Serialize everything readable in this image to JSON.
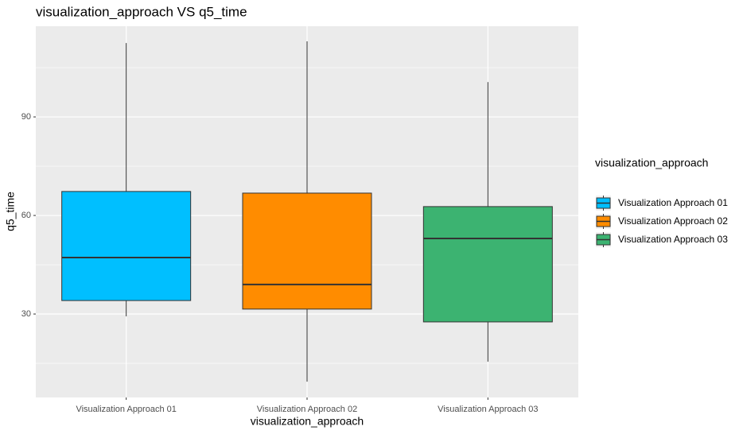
{
  "chart_data": {
    "type": "boxplot",
    "title": "visualization_approach VS q5_time",
    "x_label": "visualization_approach",
    "y_label": "q5_time",
    "legend_title": "visualization_approach",
    "categories": [
      "Visualization Approach 01",
      "Visualization Approach 02",
      "Visualization Approach 03"
    ],
    "colors": [
      "#00BFFF",
      "#FF8C00",
      "#3CB371"
    ],
    "min": [
      29.3,
      9.4,
      15.5
    ],
    "q1": [
      34.1,
      31.5,
      27.6
    ],
    "median": [
      47.2,
      39,
      53
    ],
    "q3": [
      67.3,
      66.8,
      62.7
    ],
    "max": [
      112.5,
      113,
      100.6
    ],
    "ylim": [
      4.6,
      117.6
    ],
    "yticks": [
      30,
      60,
      90
    ],
    "minor_grid": [
      15,
      45,
      75,
      105
    ],
    "grid": true,
    "legend_position": "right"
  }
}
